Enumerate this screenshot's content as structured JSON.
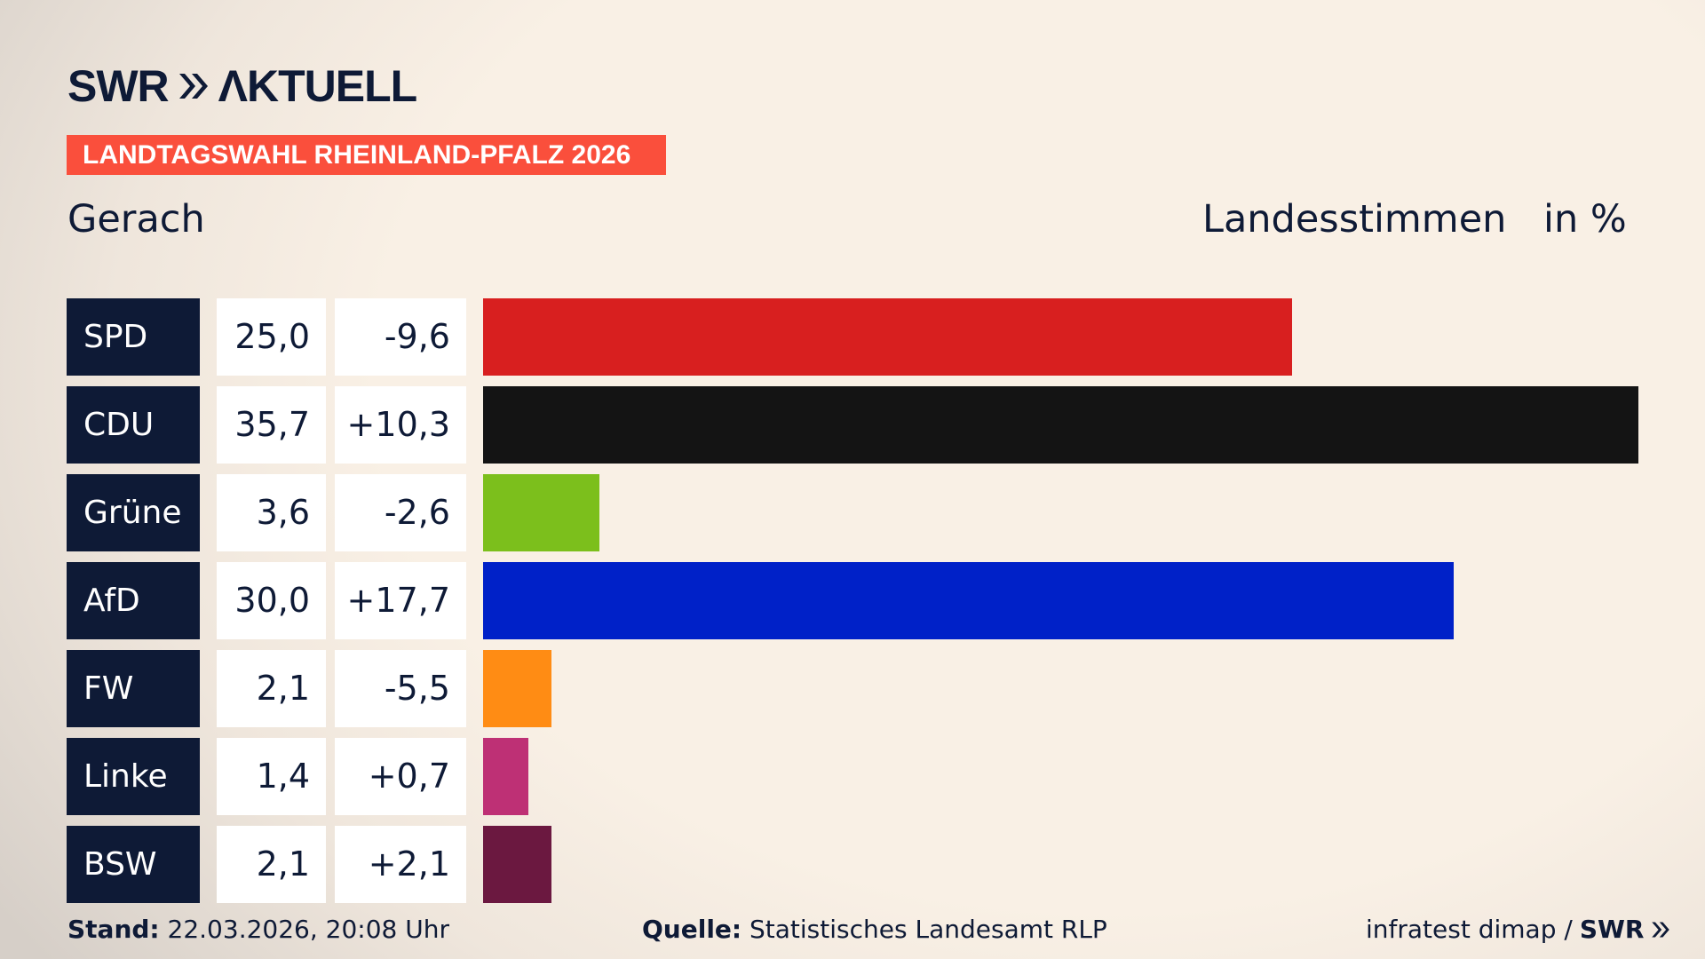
{
  "header": {
    "logo": "SWR AKTUELL",
    "banner": "LANDTAGSWAHL RHEINLAND-PFALZ 2026",
    "place": "Gerach",
    "metric": "Landesstimmen",
    "unit": "in %"
  },
  "chart_data": {
    "type": "bar",
    "orientation": "horizontal",
    "title": "Gerach",
    "ylabel": "Landesstimmen",
    "unit": "in %",
    "categories": [
      "SPD",
      "CDU",
      "Grüne",
      "AfD",
      "FW",
      "Linke",
      "BSW"
    ],
    "values": [
      25.0,
      35.7,
      3.6,
      30.0,
      2.1,
      1.4,
      2.1
    ],
    "value_labels": [
      "25,0",
      "35,7",
      "3,6",
      "30,0",
      "2,1",
      "1,4",
      "2,1"
    ],
    "change_labels": [
      "-9,6",
      "+10,3",
      "-2,6",
      "+17,7",
      "-5,5",
      "+0,7",
      "+2,1"
    ],
    "changes": [
      -9.6,
      10.3,
      -2.6,
      17.7,
      -5.5,
      0.7,
      2.1
    ],
    "colors": [
      "#d81f1f",
      "#141414",
      "#7cbf1c",
      "#0021c8",
      "#ff8c14",
      "#be3075",
      "#6b1840"
    ],
    "xlim": [
      0,
      35.7
    ],
    "grid": false,
    "legend": "none"
  },
  "footer": {
    "stand_label": "Stand:",
    "stand_value": "22.03.2026, 20:08 Uhr",
    "source_label": "Quelle:",
    "source_value": "Statistisches Landesamt RLP",
    "credit": "infratest dimap /",
    "credit_logo": "SWR"
  }
}
